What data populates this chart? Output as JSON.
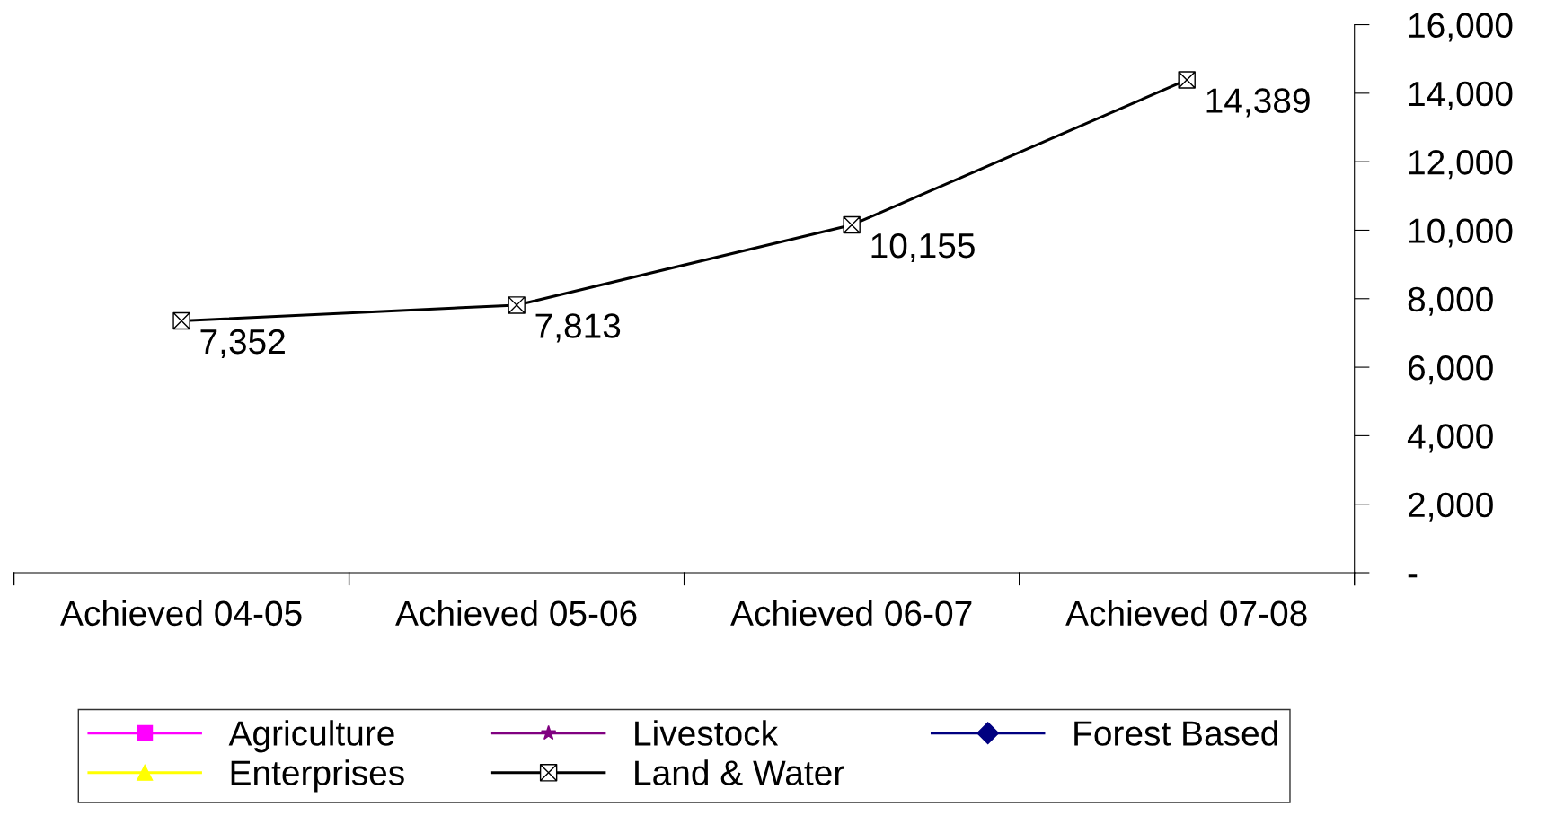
{
  "chart_data": {
    "type": "line",
    "categories": [
      "Achieved 04-05",
      "Achieved 05-06",
      "Achieved 06-07",
      "Achieved 07-08"
    ],
    "series": [
      {
        "name": "Agriculture",
        "color": "#ff00ff",
        "marker": "square",
        "values": [
          null,
          null,
          null,
          null
        ]
      },
      {
        "name": "Livestock",
        "color": "#800080",
        "marker": "star",
        "values": [
          null,
          null,
          null,
          null
        ]
      },
      {
        "name": "Forest Based",
        "color": "#000080",
        "marker": "diamond",
        "values": [
          null,
          null,
          null,
          null
        ]
      },
      {
        "name": "Enterprises",
        "color": "#ffff00",
        "marker": "triangle",
        "values": [
          null,
          null,
          null,
          null
        ]
      },
      {
        "name": "Land & Water",
        "color": "#000000",
        "marker": "cross",
        "values": [
          7352,
          7813,
          10155,
          14389
        ],
        "value_labels": [
          "7,352",
          "7,813",
          "10,155",
          "14,389"
        ]
      }
    ],
    "ylim": [
      0,
      16000
    ],
    "yticks": [
      {
        "value": 0,
        "label": "-"
      },
      {
        "value": 2000,
        "label": "2,000"
      },
      {
        "value": 4000,
        "label": "4,000"
      },
      {
        "value": 6000,
        "label": "6,000"
      },
      {
        "value": 8000,
        "label": "8,000"
      },
      {
        "value": 10000,
        "label": "10,000"
      },
      {
        "value": 12000,
        "label": "12,000"
      },
      {
        "value": 14000,
        "label": "14,000"
      },
      {
        "value": 16000,
        "label": "16,000"
      }
    ],
    "grid": false,
    "legend": "bottom"
  }
}
